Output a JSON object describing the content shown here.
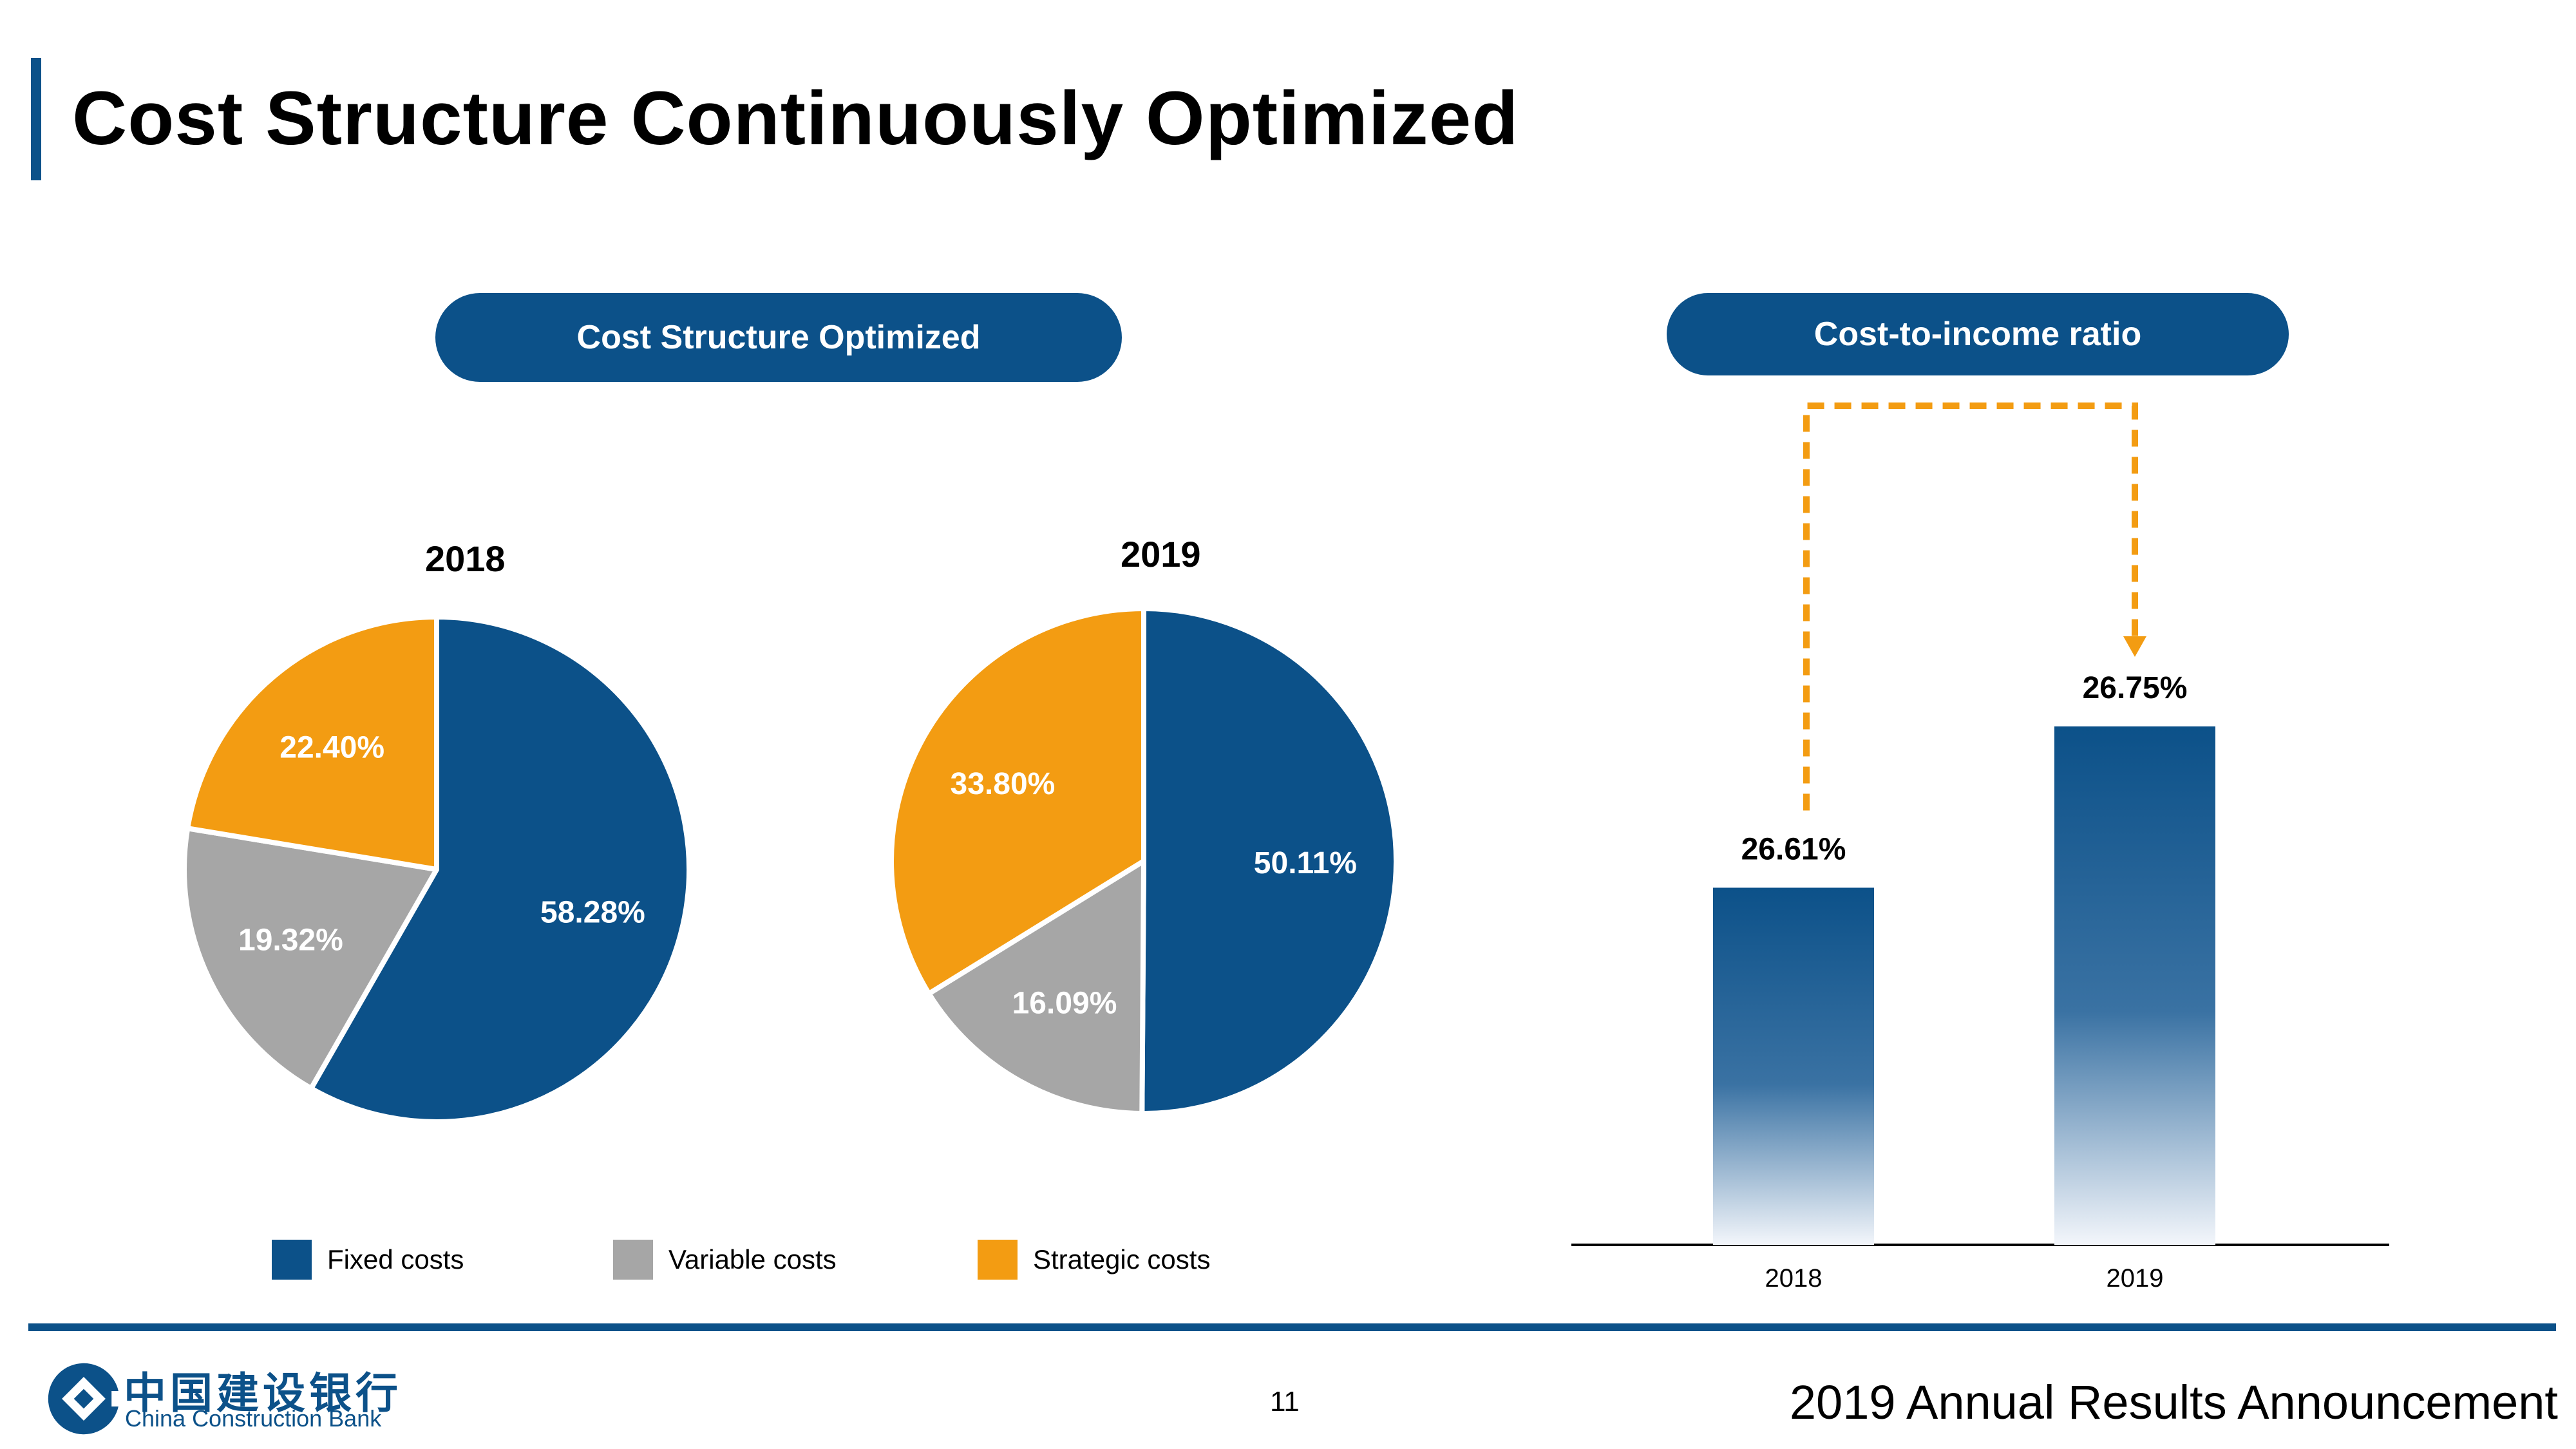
{
  "header": {
    "title": "Cost Structure Continuously Optimized"
  },
  "left_panel": {
    "pill_label": "Cost Structure Optimized"
  },
  "right_panel": {
    "pill_label": "Cost-to-income ratio"
  },
  "legend": [
    {
      "label": "Fixed costs",
      "color": "#0c5189"
    },
    {
      "label": "Variable costs",
      "color": "#a6a6a6"
    },
    {
      "label": "Strategic costs",
      "color": "#f39c12"
    }
  ],
  "footer": {
    "bank_name_cn": "中国建设银行",
    "bank_name_en": "China Construction Bank",
    "page_number": "11",
    "report_title": "2019 Annual Results Announcement",
    "logo_icon": "ccb-logo-icon"
  },
  "chart_data": [
    {
      "type": "pie",
      "title": "2018",
      "categories": [
        "Fixed costs",
        "Variable costs",
        "Strategic costs"
      ],
      "values": [
        58.28,
        19.32,
        22.4
      ],
      "labels": [
        "58.28%",
        "19.32%",
        "22.40%"
      ],
      "colors": [
        "#0c5189",
        "#a6a6a6",
        "#f39c12"
      ]
    },
    {
      "type": "pie",
      "title": "2019",
      "categories": [
        "Fixed costs",
        "Variable costs",
        "Strategic costs"
      ],
      "values": [
        50.11,
        16.09,
        33.8
      ],
      "labels": [
        "50.11%",
        "16.09%",
        "33.80%"
      ],
      "colors": [
        "#0c5189",
        "#a6a6a6",
        "#f39c12"
      ]
    },
    {
      "type": "bar",
      "title": "Cost-to-income ratio",
      "categories": [
        "2018",
        "2019"
      ],
      "values": [
        26.61,
        26.75
      ],
      "labels": [
        "26.61%",
        "26.75%"
      ],
      "color": "#0c5189",
      "annotation": "dashed orange arrow from 2018 bar to 2019 bar",
      "annotation_color": "#f39c12"
    }
  ]
}
